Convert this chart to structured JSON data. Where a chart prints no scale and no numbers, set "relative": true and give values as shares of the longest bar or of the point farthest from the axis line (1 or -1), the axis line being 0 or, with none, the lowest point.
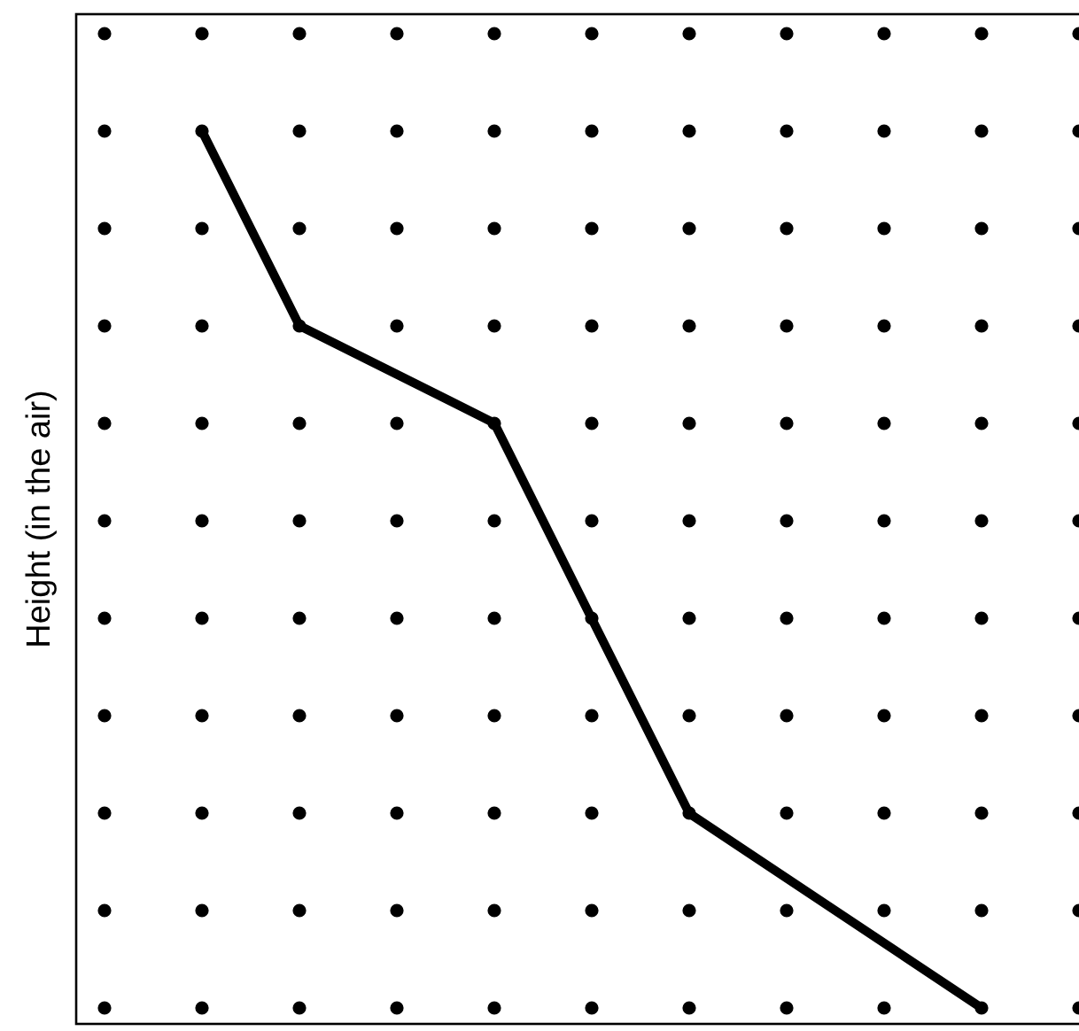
{
  "chart_data": {
    "type": "line",
    "ylabel": "Height (in the air)",
    "relative": true,
    "line_style": "solid",
    "grid": "x",
    "categories": [
      null,
      null,
      null,
      null,
      null,
      null,
      null,
      null,
      null,
      null,
      null
    ],
    "series": [
      {
        "color": "#000000",
        "values": [
          null,
          1,
          0.778,
          null,
          0.667,
          0.444,
          0.222,
          null,
          null,
          0,
          null
        ]
      }
    ]
  }
}
